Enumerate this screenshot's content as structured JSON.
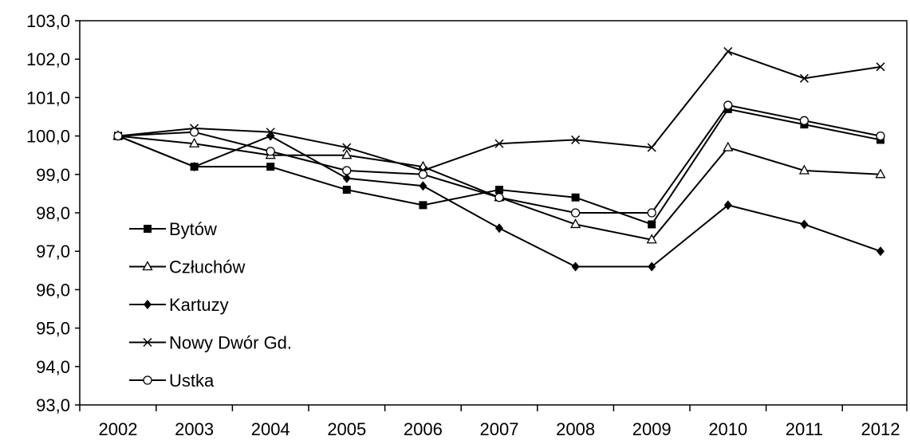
{
  "chart_data": {
    "type": "line",
    "title": "",
    "xlabel": "",
    "ylabel": "",
    "categories": [
      "2002",
      "2003",
      "2004",
      "2005",
      "2006",
      "2007",
      "2008",
      "2009",
      "2010",
      "2011",
      "2012"
    ],
    "ylim": [
      93.0,
      103.0
    ],
    "yticks": [
      "93,0",
      "94,0",
      "95,0",
      "96,0",
      "97,0",
      "98,0",
      "99,0",
      "100,0",
      "101,0",
      "102,0",
      "103,0"
    ],
    "grid": false,
    "legend_position": "left",
    "series": [
      {
        "name": "Bytów",
        "marker": "square",
        "values": [
          100.0,
          99.2,
          99.2,
          98.6,
          98.2,
          98.6,
          98.4,
          97.7,
          100.7,
          100.3,
          99.9
        ]
      },
      {
        "name": "Człuchów",
        "marker": "triangle-open",
        "values": [
          100.0,
          99.8,
          99.5,
          99.5,
          99.2,
          98.4,
          97.7,
          97.3,
          99.7,
          99.1,
          99.0
        ]
      },
      {
        "name": "Kartuzy",
        "marker": "diamond",
        "values": [
          100.0,
          99.2,
          100.0,
          98.9,
          98.7,
          97.6,
          96.6,
          96.6,
          98.2,
          97.7,
          97.0
        ]
      },
      {
        "name": "Nowy Dwór Gd.",
        "marker": "x",
        "values": [
          100.0,
          100.2,
          100.1,
          99.7,
          99.1,
          99.8,
          99.9,
          99.7,
          102.2,
          101.5,
          101.8
        ]
      },
      {
        "name": "Ustka",
        "marker": "circle-open",
        "values": [
          100.0,
          100.1,
          99.6,
          99.1,
          99.0,
          98.4,
          98.0,
          98.0,
          100.8,
          100.4,
          100.0
        ]
      }
    ]
  }
}
